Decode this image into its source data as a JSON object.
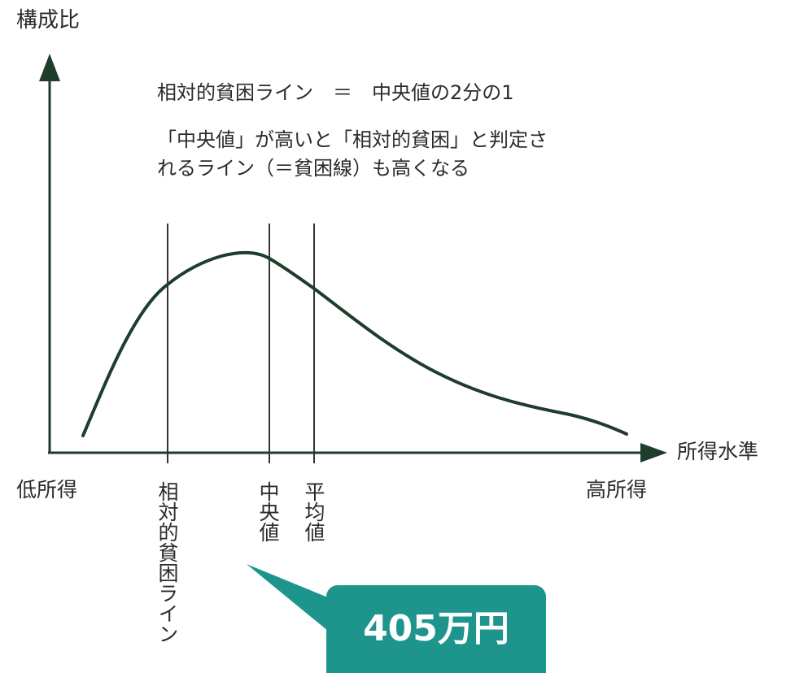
{
  "diagram": {
    "y_axis_label": "構成比",
    "x_axis_label": "所得水準",
    "formula": "相対的貧困ライン　＝　中央値の2分の1",
    "note_line1": "「中央値」が高いと「相対的貧困」と判定さ",
    "note_line2": "れるライン（＝貧困線）も高くなる",
    "low_income_label": "低所得",
    "high_income_label": "高所得",
    "markers": {
      "poverty_line": "相対的貧困ライン",
      "median": "中央値",
      "mean": "平均値"
    },
    "callout": "405万円",
    "colors": {
      "axis": "#1e3d2a",
      "curve": "#1e3d2a",
      "marker_lines": "#333333",
      "callout_bg": "#1e958c",
      "callout_text": "#ffffff"
    }
  }
}
